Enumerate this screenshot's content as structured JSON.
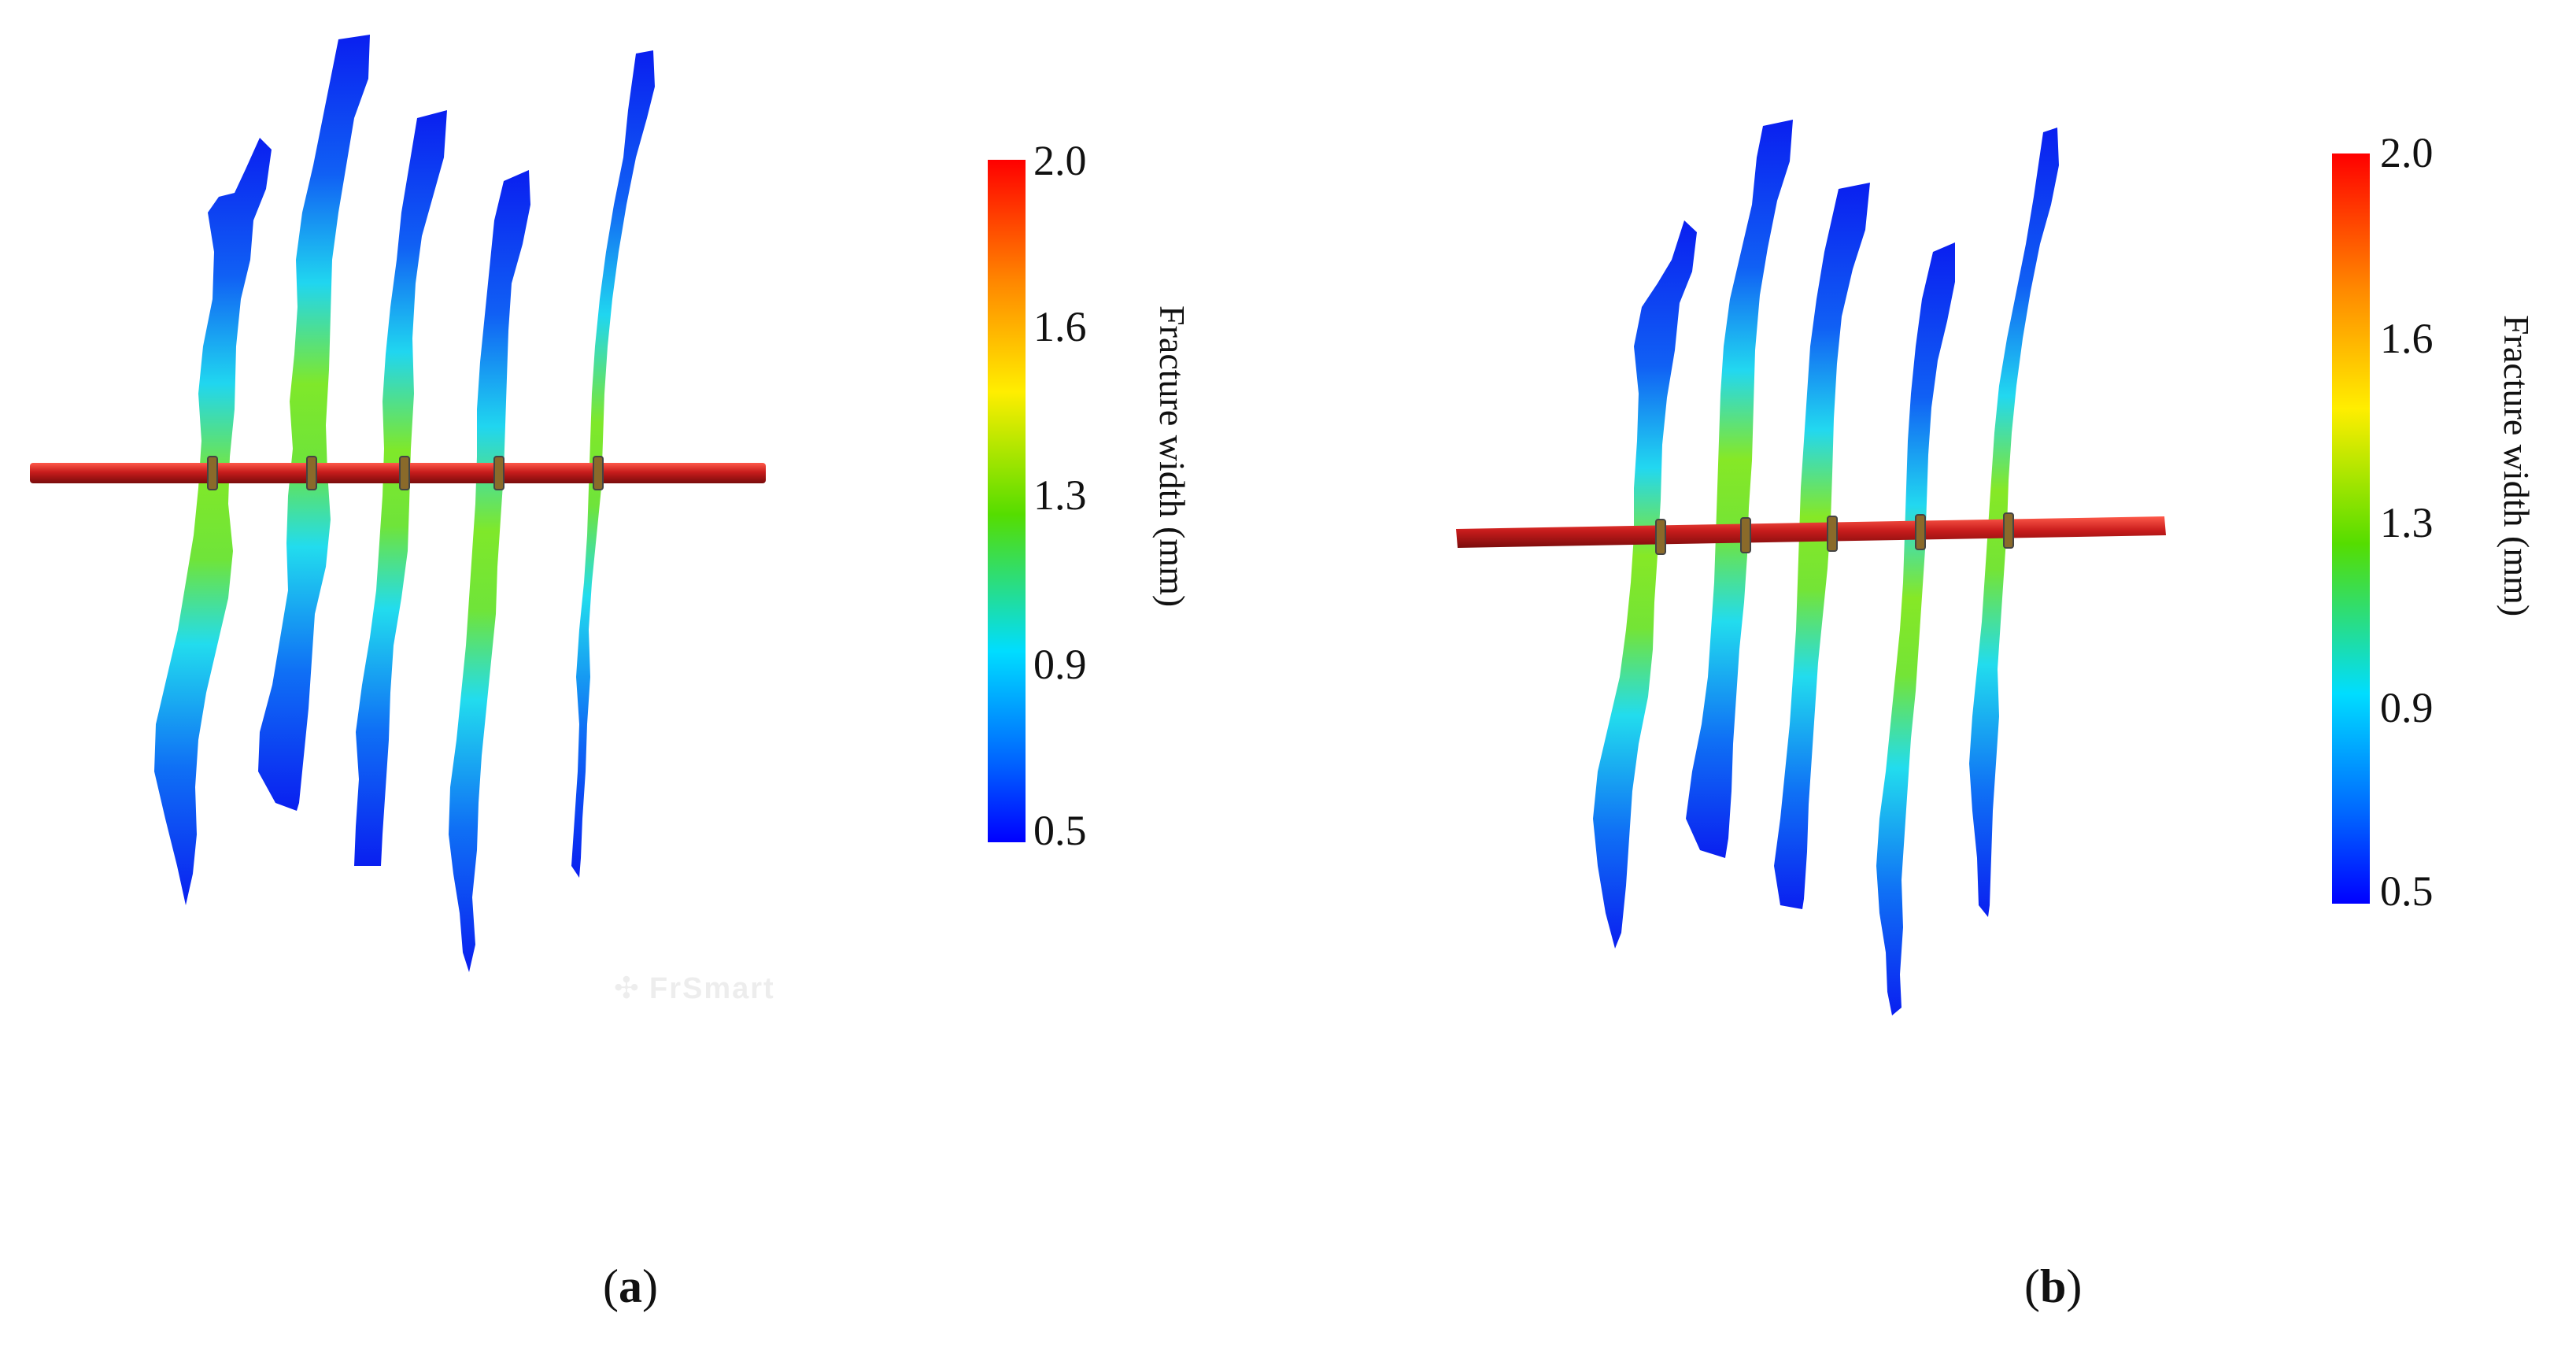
{
  "colorbar": {
    "title": "Fracture width (mm)",
    "ticks": [
      "2.0",
      "1.6",
      "1.3",
      "0.9",
      "0.5"
    ],
    "gradient": [
      "#ff0000",
      "#ff8800",
      "#ffee00",
      "#55dd00",
      "#00ddff",
      "#0066ff",
      "#0000ff"
    ]
  },
  "colors": {
    "wellbore": "#c81c1c",
    "wellbore_highlight": "#ff5a4a",
    "fracture_low": "#0a1ff0",
    "fracture_mid": "#22e0ee",
    "fracture_high": "#88ea22"
  },
  "panels": [
    {
      "id": "a",
      "label": "a",
      "watermark": "FrSmart",
      "fracture_count": 5
    },
    {
      "id": "b",
      "label": "b",
      "watermark": "",
      "fracture_count": 5
    }
  ]
}
